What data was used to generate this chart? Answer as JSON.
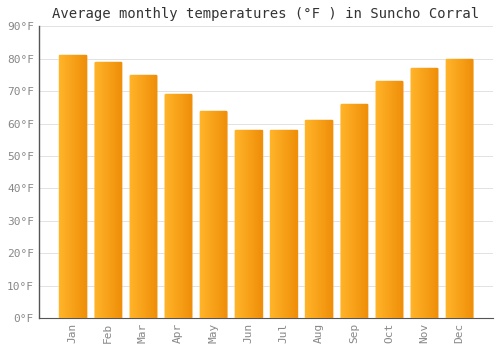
{
  "title": "Average monthly temperatures (°F ) in Suncho Corral",
  "months": [
    "Jan",
    "Feb",
    "Mar",
    "Apr",
    "May",
    "Jun",
    "Jul",
    "Aug",
    "Sep",
    "Oct",
    "Nov",
    "Dec"
  ],
  "values": [
    81,
    79,
    75,
    69,
    64,
    58,
    58,
    61,
    66,
    73,
    77,
    80
  ],
  "bar_color_light": "#FFB52A",
  "bar_color_dark": "#F0900A",
  "background_color": "#FFFFFF",
  "grid_color": "#DDDDDD",
  "ylim": [
    0,
    90
  ],
  "yticks": [
    0,
    10,
    20,
    30,
    40,
    50,
    60,
    70,
    80,
    90
  ],
  "ytick_labels": [
    "0°F",
    "10°F",
    "20°F",
    "30°F",
    "40°F",
    "50°F",
    "60°F",
    "70°F",
    "80°F",
    "90°F"
  ],
  "title_fontsize": 10,
  "tick_fontsize": 8,
  "bar_width": 0.75,
  "tick_color": "#888888",
  "title_color": "#333333",
  "left_spine_color": "#555555"
}
